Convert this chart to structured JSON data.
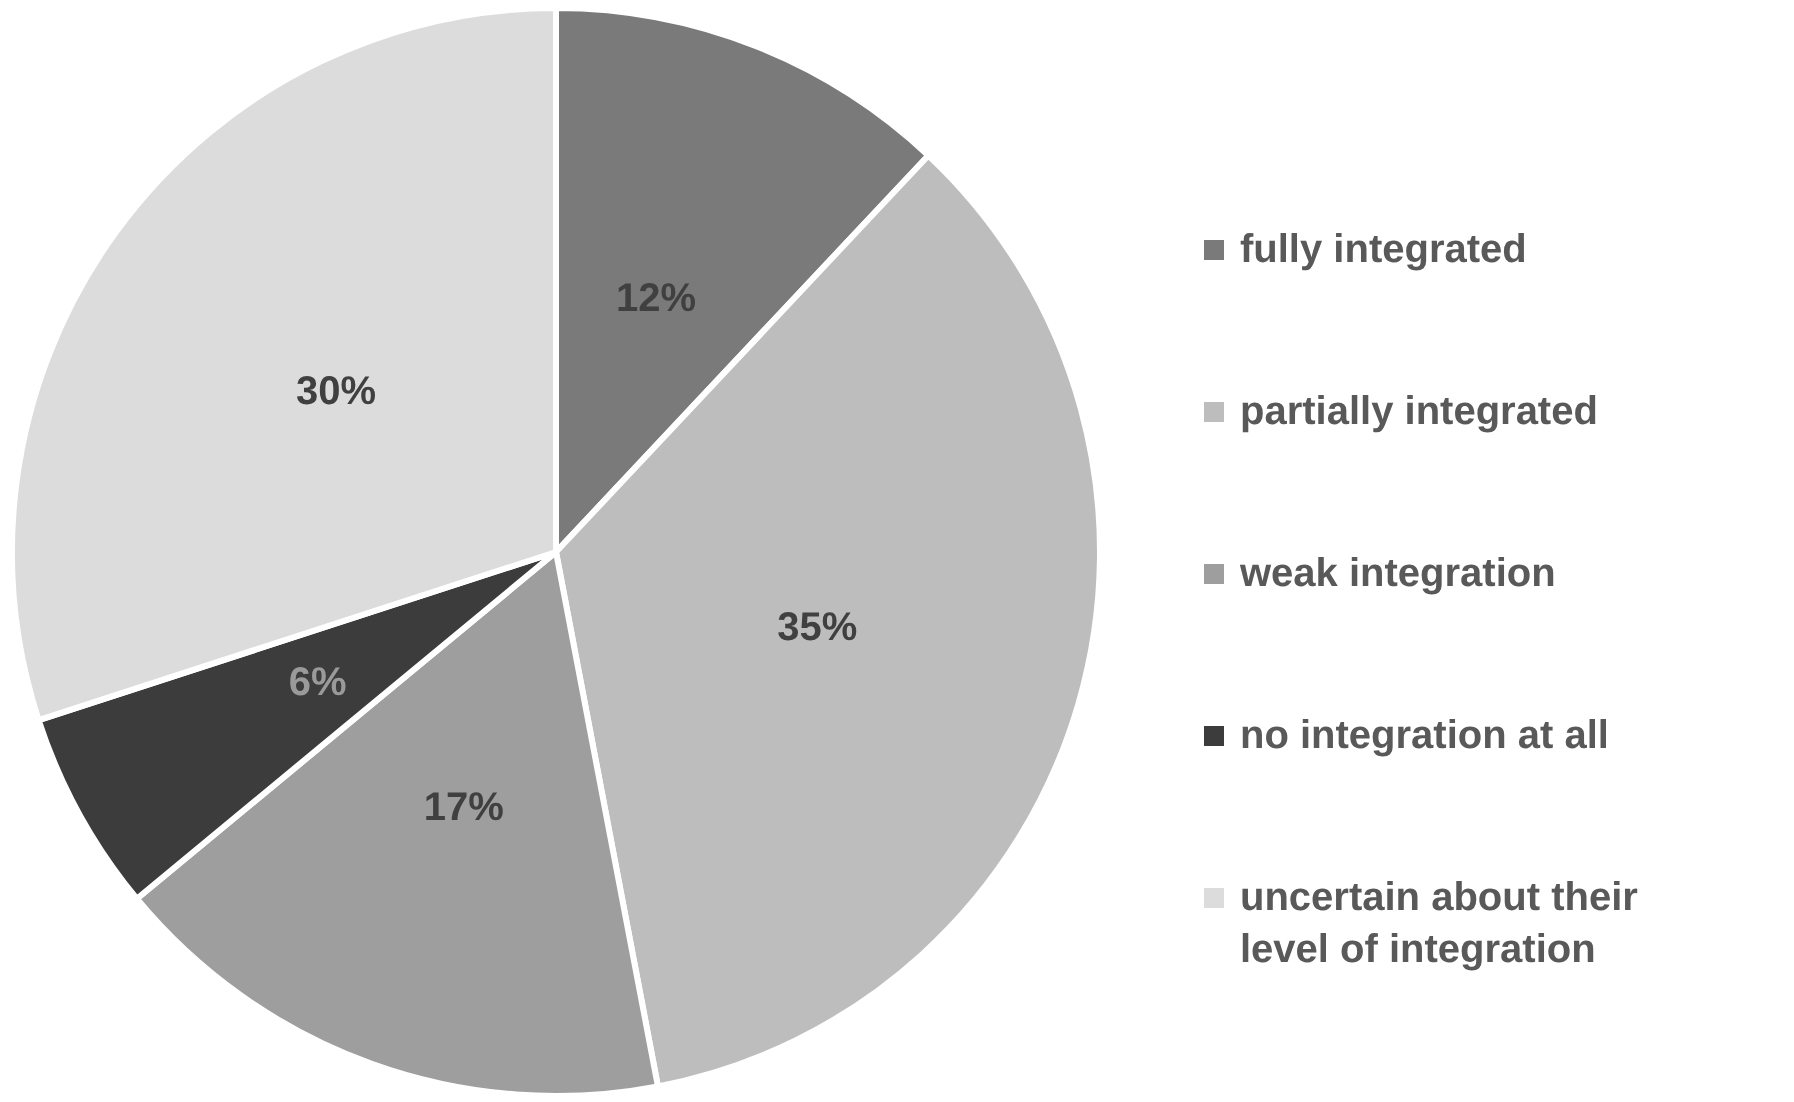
{
  "chart_data": {
    "type": "pie",
    "categories": [
      "fully integrated",
      "partially integrated",
      "weak integration",
      "no integration at all",
      "uncertain about their level of integration"
    ],
    "values": [
      12,
      35,
      17,
      6,
      30
    ],
    "colors": [
      "#7a7a7a",
      "#bdbdbd",
      "#9e9e9e",
      "#3c3c3c",
      "#dcdcdc"
    ],
    "value_labels": [
      "12%",
      "35%",
      "17%",
      "6%",
      "30%"
    ],
    "legend": "right"
  }
}
